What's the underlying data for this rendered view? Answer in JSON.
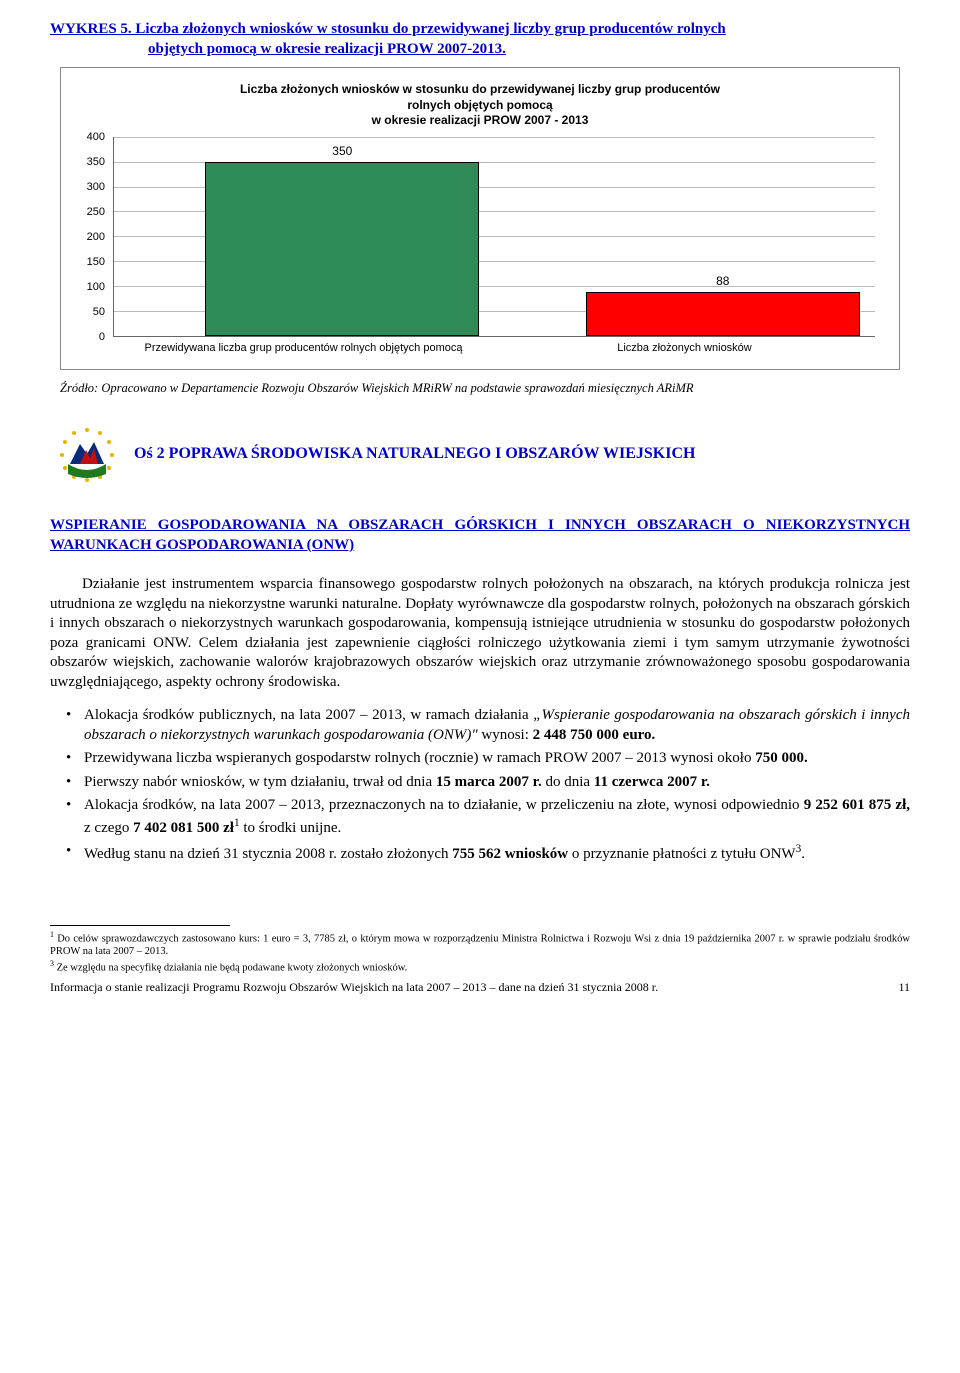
{
  "figure_caption_line1": "WYKRES 5.  Liczba złożonych wniosków w stosunku do przewidywanej liczby grup producentów rolnych",
  "figure_caption_line2": "objętych pomocą w okresie realizacji PROW 2007-2013.",
  "chart": {
    "type": "bar",
    "title_l1": "Liczba złożonych wniosków w stosunku do przewidywanej liczby grup producentów",
    "title_l2": "rolnych objętych pomocą",
    "title_l3": "w okresie realizacji PROW 2007 - 2013",
    "ymax": 400,
    "ytick_step": 50,
    "yticks": [
      "0",
      "50",
      "100",
      "150",
      "200",
      "250",
      "300",
      "350",
      "400"
    ],
    "categories": [
      "Przewidywana liczba grup producentów rolnych objętych pomocą",
      "Liczba złożonych wniosków"
    ],
    "values": [
      350,
      88
    ],
    "value_labels": [
      "350",
      "88"
    ],
    "bar_colors": [
      "#2e8b57",
      "#ff0000"
    ],
    "bar_border": "#000000",
    "grid_color": "#bbbbbb",
    "background": "#ffffff",
    "bar_width_pct": 36,
    "bar_left_pct": [
      12,
      62
    ],
    "axis_font": "Arial",
    "axis_fontsize": 11
  },
  "source_text": "Źródło: Opracowano w Departamencie Rozwoju Obszarów Wiejskich MRiRW na podstawie sprawozdań miesięcznych ARiMR",
  "axis_heading": "Oś 2 POPRAWA ŚRODOWISKA NATURALNEGO I OBSZARÓW WIEJSKICH",
  "action_title": "WSPIERANIE GOSPODAROWANIA NA OBSZARACH GÓRSKICH I INNYCH OBSZARACH O NIEKORZYSTNYCH WARUNKACH GOSPODAROWANIA (ONW)",
  "paragraph": "Działanie jest instrumentem wsparcia finansowego gospodarstw rolnych położonych na obszarach, na których produkcja rolnicza jest utrudniona ze względu na niekorzystne warunki naturalne. Dopłaty wyrównawcze dla gospodarstw rolnych, położonych na obszarach górskich i innych obszarach o niekorzystnych warunkach gospodarowania, kompensują istniejące utrudnienia w stosunku do gospodarstw położonych poza granicami ONW. Celem działania jest zapewnienie ciągłości rolniczego użytkowania ziemi i tym samym utrzymanie żywotności obszarów wiejskich, zachowanie walorów krajobrazowych obszarów wiejskich oraz utrzymanie zrównoważonego sposobu gospodarowania uwzględniającego, aspekty ochrony środowiska.",
  "bullets": {
    "b1_a": "Alokacja środków publicznych, na lata 2007 – 2013, w ramach działania ",
    "b1_b": "„Wspieranie gospodarowania na obszarach górskich i innych obszarach o niekorzystnych warunkach gospodarowania (ONW)\"",
    "b1_c": " wynosi: ",
    "b1_d": "2 448 750 000 euro.",
    "b2_a": "Przewidywana liczba wspieranych gospodarstw rolnych (rocznie) w ramach PROW 2007 – 2013 wynosi około ",
    "b2_b": "750 000.",
    "b3_a": "Pierwszy nabór wniosków, w tym działaniu, trwał od dnia ",
    "b3_b": "15 marca 2007 r.",
    "b3_c": " do dnia ",
    "b3_d": "11 czerwca 2007 r.",
    "b4_a": "Alokacja środków, na lata 2007 – 2013, przeznaczonych na to działanie, w przeliczeniu na złote, wynosi odpowiednio ",
    "b4_b": "9 252 601 875 zł,",
    "b4_c": " z czego ",
    "b4_d": "7 402 081 500 zł",
    "b4_sup": "1",
    "b4_e": " to środki unijne.",
    "b5_a": "Według stanu na dzień 31 stycznia 2008 r. zostało złożonych ",
    "b5_b": "755 562 wniosków",
    "b5_c": " o przyznanie płatności z tytułu ONW",
    "b5_sup": "3",
    "b5_d": "."
  },
  "footnotes": {
    "f1_sup": "1",
    "f1": " Do celów sprawozdawczych zastosowano kurs: 1 euro = 3, 7785 zł, o którym  mowa w rozporządzeniu Ministra Rolnictwa i Rozwoju Wsi   z  dnia 19 października 2007 r.  w sprawie podziału środków PROW na lata 2007 – 2013.",
    "f3_sup": "3",
    "f3": " Ze względu na specyfikę działania nie będą podawane kwoty złożonych wniosków."
  },
  "footer_text": "Informacja o stanie realizacji Programu Rozwoju Obszarów Wiejskich na lata 2007 – 2013 – dane na dzień 31 stycznia 2008 r.",
  "page_number": "11"
}
